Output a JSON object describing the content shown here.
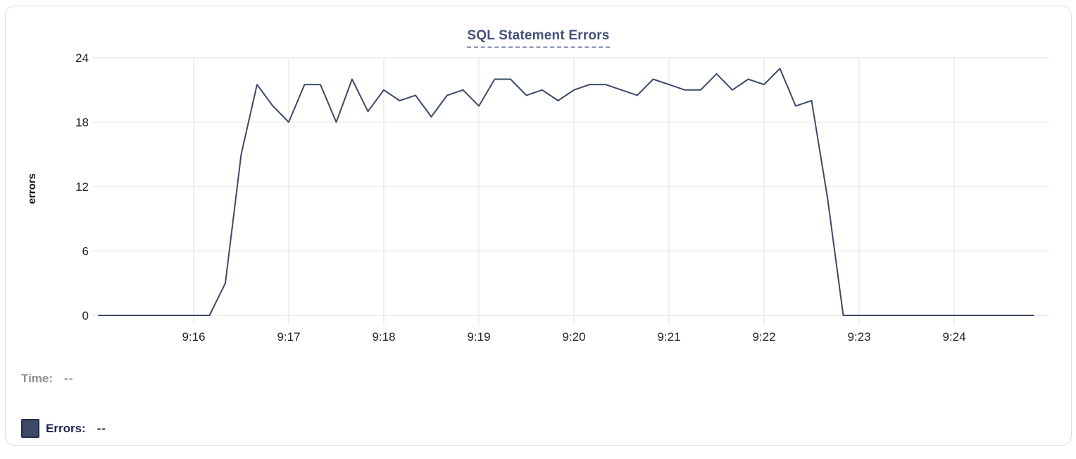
{
  "chart_data": {
    "type": "line",
    "title": "SQL Statement Errors",
    "ylabel": "errors",
    "ylim": [
      0,
      24
    ],
    "y_ticks": [
      0,
      6,
      12,
      18,
      24
    ],
    "x_ticks": [
      "9:16",
      "9:17",
      "9:18",
      "9:19",
      "9:20",
      "9:21",
      "9:22",
      "9:23",
      "9:24"
    ],
    "x_range": [
      "9:15:00",
      "9:25:00"
    ],
    "sample_interval_seconds": 10,
    "grid": true,
    "grid_color": "#ebebeb",
    "legend_position": "bottom-left",
    "series": [
      {
        "name": "Errors",
        "color": "#3b4a68",
        "start_time": "9:15:00",
        "values": [
          0,
          0,
          0,
          0,
          0,
          0,
          0,
          0,
          3,
          15,
          21.5,
          19.5,
          18,
          21.5,
          21.5,
          18,
          22,
          19,
          21,
          20,
          20.5,
          18.5,
          20.5,
          21,
          19.5,
          22,
          22,
          20.5,
          21,
          20,
          21,
          21.5,
          21.5,
          21,
          20.5,
          22,
          21.5,
          21,
          21,
          22.5,
          21,
          22,
          21.5,
          23,
          19.5,
          20,
          11,
          0,
          0,
          0,
          0,
          0,
          0,
          0,
          0,
          0,
          0,
          0,
          0,
          0
        ]
      }
    ]
  },
  "legend": {
    "time_label": "Time:",
    "time_value": "--",
    "series_label": "Errors:",
    "series_value": "--",
    "swatch_color": "#3d4a66",
    "swatch_border_color": "#232f4e"
  },
  "colors": {
    "title": "#44517a",
    "line": "#3b4a68",
    "grid": "#ebebeb",
    "card_border": "#dedede"
  }
}
